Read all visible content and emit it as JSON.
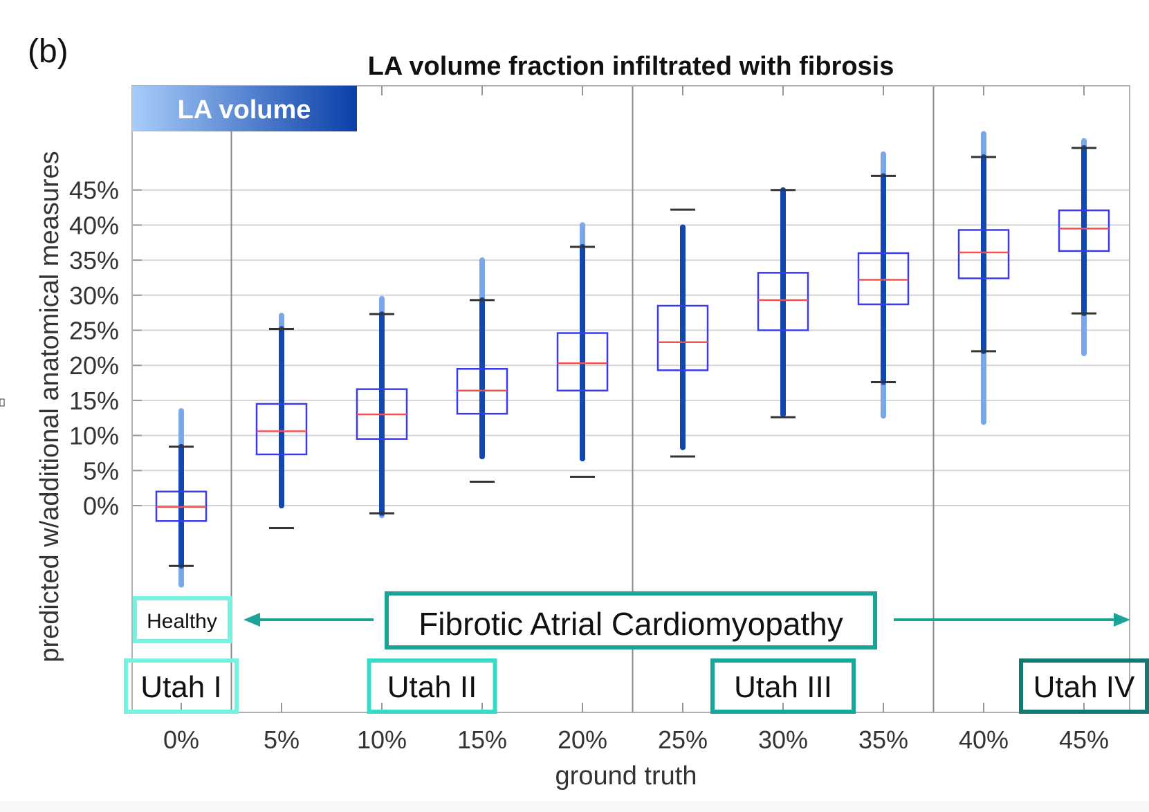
{
  "panel_label": "(b)",
  "chart_data": {
    "type": "box",
    "title": "LA volume fraction infiltrated with fibrosis",
    "badge": "LA volume",
    "xlabel": "ground truth",
    "ylabel": "predicted w/additional anatomical measures",
    "categories": [
      "0%",
      "5%",
      "10%",
      "15%",
      "20%",
      "25%",
      "30%",
      "35%",
      "40%",
      "45%"
    ],
    "y_ticks": [
      0,
      5,
      10,
      15,
      20,
      25,
      30,
      35,
      40,
      45
    ],
    "y_tick_labels": [
      "0%",
      "5%",
      "10%",
      "15%",
      "20%",
      "25%",
      "30%",
      "35%",
      "40%",
      "45%"
    ],
    "ylim": [
      -28,
      59
    ],
    "grid": true,
    "units": "%",
    "boxes": [
      {
        "category": "0%",
        "q1": -2.2,
        "median": -0.2,
        "q3": 2.0,
        "whisker_low": -8.6,
        "whisker_high": 8.4,
        "data_min": -11.3,
        "data_max": 13.5
      },
      {
        "category": "5%",
        "q1": 7.3,
        "median": 10.6,
        "q3": 14.5,
        "whisker_low": -3.2,
        "whisker_high": 25.2,
        "data_min": 0.0,
        "data_max": 27.1
      },
      {
        "category": "10%",
        "q1": 9.5,
        "median": 13.0,
        "q3": 16.6,
        "whisker_low": -1.1,
        "whisker_high": 27.3,
        "data_min": -1.4,
        "data_max": 29.5
      },
      {
        "category": "15%",
        "q1": 13.1,
        "median": 16.4,
        "q3": 19.5,
        "whisker_low": 3.4,
        "whisker_high": 29.3,
        "data_min": 7.0,
        "data_max": 35.0
      },
      {
        "category": "20%",
        "q1": 16.4,
        "median": 20.3,
        "q3": 24.6,
        "whisker_low": 4.1,
        "whisker_high": 36.9,
        "data_min": 6.7,
        "data_max": 40.0
      },
      {
        "category": "25%",
        "q1": 19.3,
        "median": 23.3,
        "q3": 28.5,
        "whisker_low": 7.0,
        "whisker_high": 42.2,
        "data_min": 8.3,
        "data_max": 39.7
      },
      {
        "category": "30%",
        "q1": 25.0,
        "median": 29.3,
        "q3": 33.2,
        "whisker_low": 12.6,
        "whisker_high": 45.0,
        "data_min": 13.0,
        "data_max": 45.0
      },
      {
        "category": "35%",
        "q1": 28.7,
        "median": 32.2,
        "q3": 36.0,
        "whisker_low": 17.6,
        "whisker_high": 47.0,
        "data_min": 12.8,
        "data_max": 50.1
      },
      {
        "category": "40%",
        "q1": 32.4,
        "median": 36.1,
        "q3": 39.3,
        "whisker_low": 22.0,
        "whisker_high": 49.7,
        "data_min": 11.9,
        "data_max": 53.0
      },
      {
        "category": "45%",
        "q1": 36.3,
        "median": 39.5,
        "q3": 42.1,
        "whisker_low": 27.4,
        "whisker_high": 51.0,
        "data_min": 21.7,
        "data_max": 52.0
      }
    ],
    "stage_dividers_after": [
      "0%",
      "20%",
      "35%"
    ],
    "annotations": {
      "healthy": "Healthy",
      "fibrotic": "Fibrotic Atrial Cardiomyopathy",
      "stages": [
        {
          "label": "Utah I",
          "from": "0%",
          "to": "0%",
          "color": "#76f2e0"
        },
        {
          "label": "Utah II",
          "from": "10%",
          "to": "15%",
          "color": "#35dcc8"
        },
        {
          "label": "Utah III",
          "from": "30%",
          "to": "30%",
          "color": "#16a79a"
        },
        {
          "label": "Utah IV",
          "from": "45%",
          "to": "45%",
          "color": "#137a72"
        }
      ]
    },
    "colors": {
      "box": "#3a3af0",
      "median": "#f2524e",
      "points": "#1347b0",
      "points_light": "#7aa6ea",
      "whisker_cap": "#333333",
      "grid": "#d5d5d5",
      "divider": "#8a8a8a",
      "fibrotic": "#1ba398",
      "healthy": "#76f2e0",
      "badge_from": "#a8cdfa",
      "badge_to": "#0a3fa8"
    }
  }
}
